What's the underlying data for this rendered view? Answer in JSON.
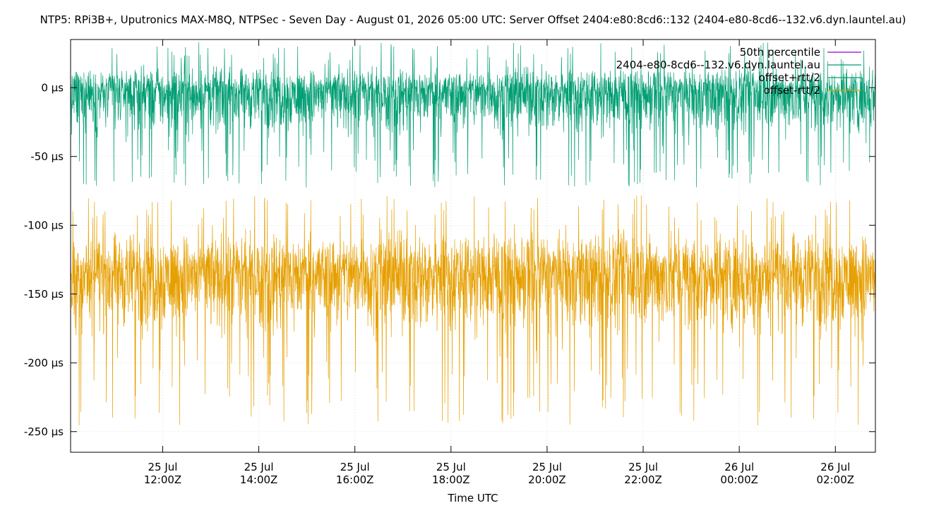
{
  "chart_data": {
    "type": "line",
    "title": "NTP5: RPi3B+, Uputronics MAX-M8Q, NTPSec - Seven Day - August 01, 2026 05:00 UTC: Server Offset 2404:e80:8cd6::132 (2404-e80-8cd6--132.v6.dyn.launtel.au)",
    "xlabel": "Time UTC",
    "ylabel": "",
    "xlim": [
      "2026-07-25T10:05Z",
      "2026-07-26T02:50Z"
    ],
    "ylim": [
      -265,
      35
    ],
    "y_unit": "µs",
    "grid": true,
    "legend_position": "top-right",
    "y_ticks": [
      {
        "value": 0,
        "label": "0 µs"
      },
      {
        "value": -50,
        "label": "-50 µs"
      },
      {
        "value": -100,
        "label": "-100 µs"
      },
      {
        "value": -150,
        "label": "-150 µs"
      },
      {
        "value": -200,
        "label": "-200 µs"
      },
      {
        "value": -250,
        "label": "-250 µs"
      }
    ],
    "x_ticks": [
      {
        "value": "2026-07-25T12:00Z",
        "line1": "25 Jul",
        "line2": "12:00Z"
      },
      {
        "value": "2026-07-25T14:00Z",
        "line1": "25 Jul",
        "line2": "14:00Z"
      },
      {
        "value": "2026-07-25T16:00Z",
        "line1": "25 Jul",
        "line2": "16:00Z"
      },
      {
        "value": "2026-07-25T18:00Z",
        "line1": "25 Jul",
        "line2": "18:00Z"
      },
      {
        "value": "2026-07-25T20:00Z",
        "line1": "25 Jul",
        "line2": "20:00Z"
      },
      {
        "value": "2026-07-25T22:00Z",
        "line1": "25 Jul",
        "line2": "22:00Z"
      },
      {
        "value": "2026-07-26T00:00Z",
        "line1": "26 Jul",
        "line2": "00:00Z"
      },
      {
        "value": "2026-07-26T02:00Z",
        "line1": "26 Jul",
        "line2": "02:00Z"
      }
    ],
    "series": [
      {
        "name": "50th percentile",
        "color": "#9400d3",
        "style": "line",
        "values": []
      },
      {
        "name": "2404-e80-8cd6--132.v6.dyn.launtel.au",
        "color": "#009e73",
        "style": "line",
        "values": []
      },
      {
        "name": "offset+rtt/2",
        "color": "#009e73",
        "style": "noise-band",
        "summary": {
          "center": -3,
          "typical_min": -45,
          "typical_max": 20,
          "extreme_min": -73,
          "extreme_max": 33
        }
      },
      {
        "name": "offset-rtt/2",
        "color": "#e69f00",
        "style": "noise-band",
        "summary": {
          "center": -135,
          "typical_min": -195,
          "typical_max": -95,
          "extreme_min": -246,
          "extreme_max": -78
        }
      }
    ]
  }
}
